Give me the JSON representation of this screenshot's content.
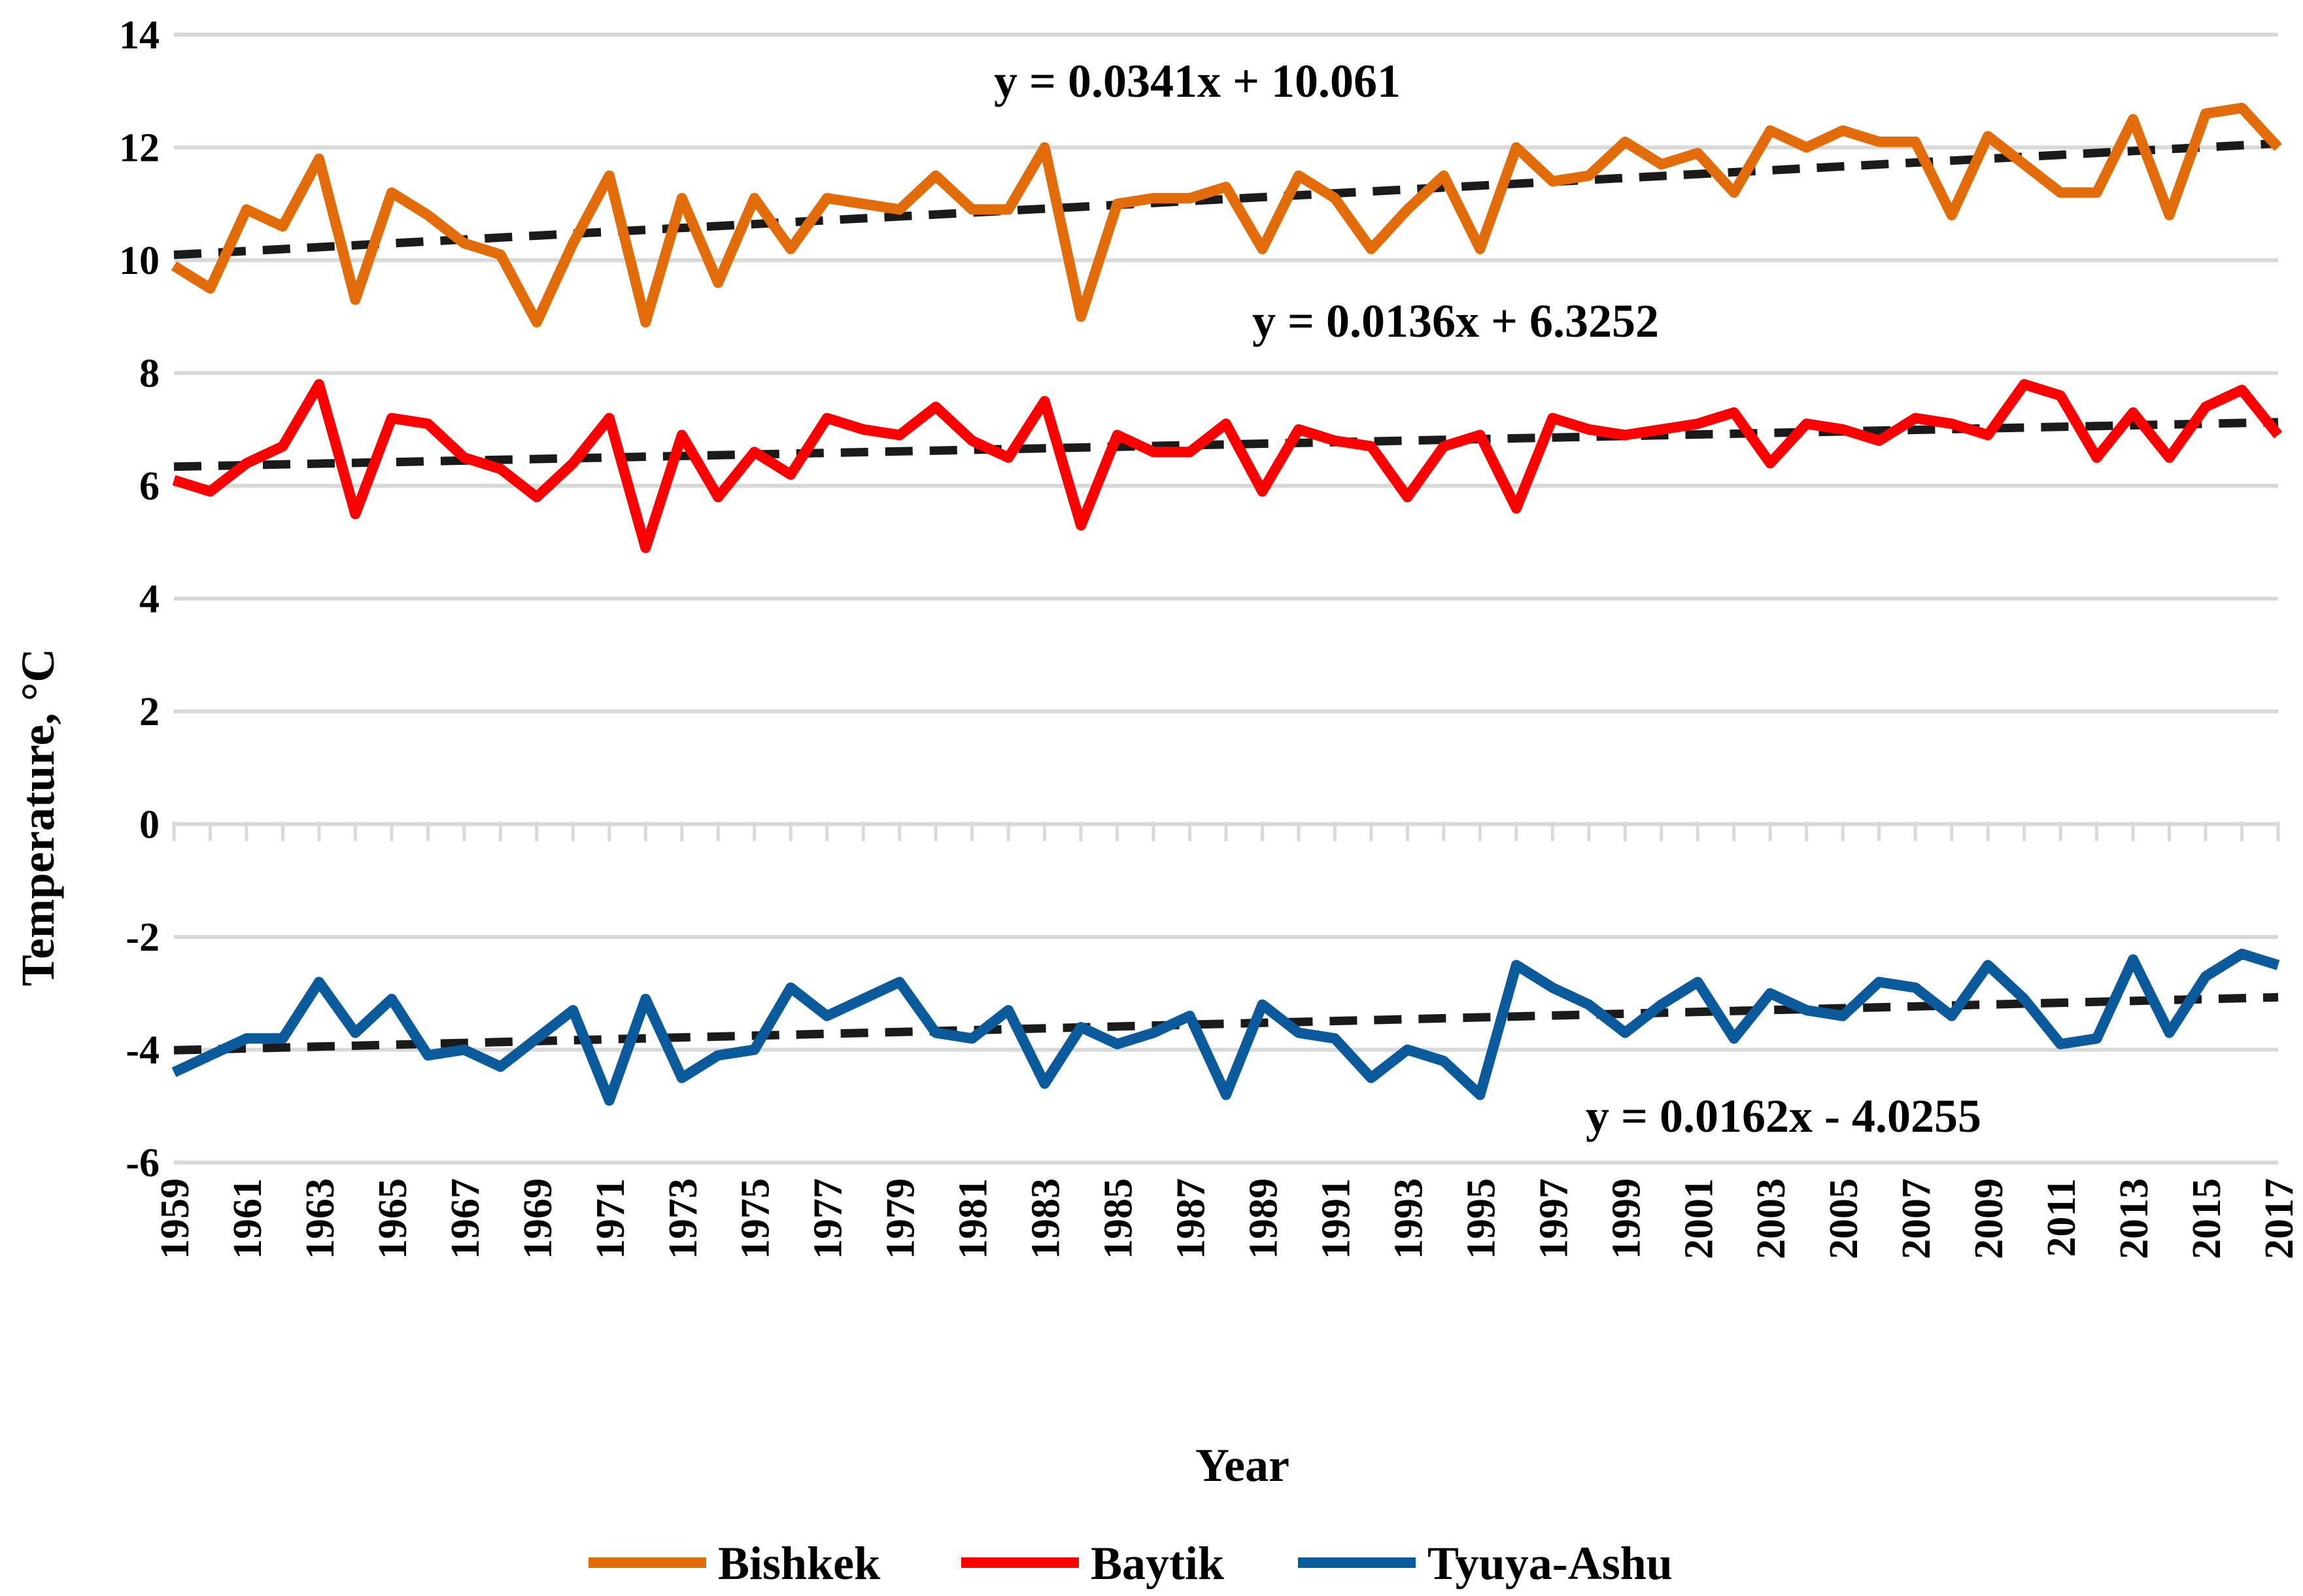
{
  "chart_data": {
    "type": "line",
    "title": "",
    "xlabel": "Year",
    "ylabel": "Temperature, °C",
    "ylim": [
      -6,
      14
    ],
    "yticks": [
      -6,
      -4,
      -2,
      0,
      2,
      4,
      6,
      8,
      10,
      12,
      14
    ],
    "ytick_labels": [
      "-6",
      "-4",
      "-2",
      "0",
      "2",
      "4",
      "6",
      "8",
      "10",
      "12",
      "14"
    ],
    "grid": true,
    "legend_position": "bottom",
    "x": [
      1959,
      1960,
      1961,
      1962,
      1963,
      1964,
      1965,
      1966,
      1967,
      1968,
      1969,
      1970,
      1971,
      1972,
      1973,
      1974,
      1975,
      1976,
      1977,
      1978,
      1979,
      1980,
      1981,
      1982,
      1983,
      1984,
      1985,
      1986,
      1987,
      1988,
      1989,
      1990,
      1991,
      1992,
      1993,
      1994,
      1995,
      1996,
      1997,
      1998,
      1999,
      2000,
      2001,
      2002,
      2003,
      2004,
      2005,
      2006,
      2007,
      2008,
      2009,
      2010,
      2011,
      2012,
      2013,
      2014,
      2015,
      2016,
      2017
    ],
    "xtick_labels": [
      "1959",
      "1961",
      "1963",
      "1965",
      "1967",
      "1969",
      "1971",
      "1973",
      "1975",
      "1977",
      "1979",
      "1981",
      "1983",
      "1985",
      "1987",
      "1989",
      "1991",
      "1993",
      "1995",
      "1997",
      "1999",
      "2001",
      "2003",
      "2005",
      "2007",
      "2009",
      "2011",
      "2013",
      "2015",
      "2017"
    ],
    "series": [
      {
        "name": "Bishkek",
        "color": "#e36c0a",
        "values": [
          9.9,
          9.5,
          10.9,
          10.6,
          11.8,
          9.3,
          11.2,
          10.8,
          10.3,
          10.1,
          8.9,
          10.3,
          11.5,
          8.9,
          11.1,
          9.6,
          11.1,
          10.2,
          11.1,
          11.0,
          10.9,
          11.5,
          10.9,
          10.9,
          12.0,
          9.0,
          11.0,
          11.1,
          11.1,
          11.3,
          10.2,
          11.5,
          11.1,
          10.2,
          10.9,
          11.5,
          10.2,
          12.0,
          11.4,
          11.5,
          12.1,
          11.7,
          11.9,
          11.2,
          12.3,
          12.0,
          12.3,
          12.1,
          12.1,
          10.8,
          12.2,
          11.7,
          11.2,
          11.2,
          12.5,
          10.8,
          12.6,
          12.7,
          12.0
        ],
        "trendline": {
          "slope": 0.0341,
          "intercept": 10.061,
          "equation": "y = 0.0341x + 10.061"
        }
      },
      {
        "name": "Baytik",
        "color": "#ff0000",
        "values": [
          6.1,
          5.9,
          6.4,
          6.7,
          7.8,
          5.5,
          7.2,
          7.1,
          6.5,
          6.3,
          5.8,
          6.4,
          7.2,
          4.9,
          6.9,
          5.8,
          6.6,
          6.2,
          7.2,
          7.0,
          6.9,
          7.4,
          6.8,
          6.5,
          7.5,
          5.3,
          6.9,
          6.6,
          6.6,
          7.1,
          5.9,
          7.0,
          6.8,
          6.7,
          5.8,
          6.7,
          6.9,
          5.6,
          7.2,
          7.0,
          6.9,
          7.0,
          7.1,
          7.3,
          6.4,
          7.1,
          7.0,
          6.8,
          7.2,
          7.1,
          6.9,
          7.8,
          7.6,
          6.5,
          7.3,
          6.5,
          7.4,
          7.7,
          6.9
        ],
        "trendline": {
          "slope": 0.0136,
          "intercept": 6.3252,
          "equation": "y = 0.0136x + 6.3252"
        }
      },
      {
        "name": "Tyuya-Ashu",
        "color": "#0a5a9c",
        "values": [
          -4.4,
          -4.1,
          -3.8,
          -3.8,
          -2.8,
          -3.7,
          -3.1,
          -4.1,
          -4.0,
          -4.3,
          -3.8,
          -3.3,
          -4.9,
          -3.1,
          -4.5,
          -4.1,
          -4.0,
          -2.9,
          -3.4,
          -3.1,
          -2.8,
          -3.7,
          -3.8,
          -3.3,
          -4.6,
          -3.6,
          -3.9,
          -3.7,
          -3.4,
          -4.8,
          -3.2,
          -3.7,
          -3.8,
          -4.5,
          -4.0,
          -4.2,
          -4.8,
          -2.5,
          -2.9,
          -3.2,
          -3.7,
          -3.2,
          -2.8,
          -3.8,
          -3.0,
          -3.3,
          -3.4,
          -2.8,
          -2.9,
          -3.4,
          -2.5,
          -3.1,
          -3.9,
          -3.8,
          -2.4,
          -3.7,
          -2.7,
          -2.3,
          -2.5
        ],
        "trendline": {
          "slope": 0.0162,
          "intercept": -4.0255,
          "equation": "y = 0.0162x - 4.0255"
        }
      }
    ]
  }
}
